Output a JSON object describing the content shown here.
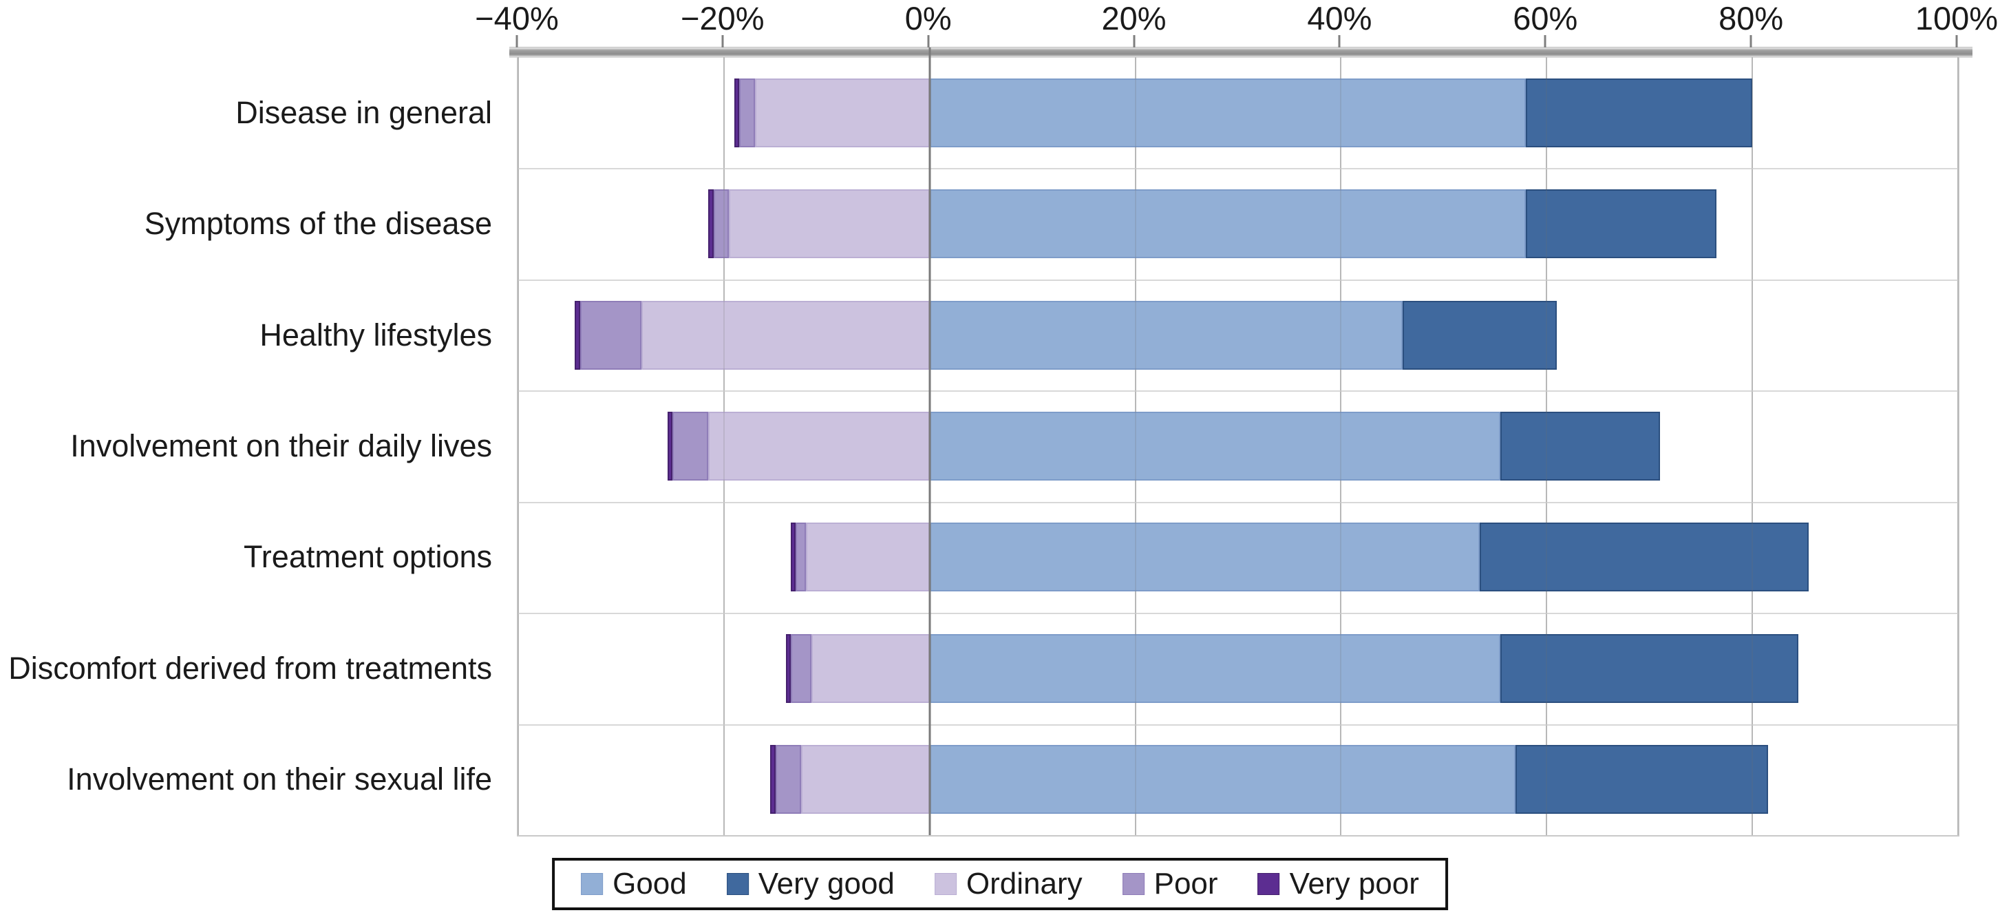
{
  "chart_data": {
    "type": "bar",
    "orientation": "horizontal",
    "diverging": true,
    "title": "",
    "categories": [
      "Disease in general",
      "Symptoms of the disease",
      "Healthy lifestyles",
      "Involvement on their daily lives",
      "Treatment options",
      "Discomfort derived from treatments",
      "Involvement on their sexual life"
    ],
    "series": [
      {
        "name": "Ordinary",
        "side": "negative",
        "color": "#CCC2DF",
        "border": "#BBAFD4",
        "values": [
          17,
          19.5,
          28,
          21.5,
          12,
          11.5,
          12.5
        ]
      },
      {
        "name": "Poor",
        "side": "negative",
        "color": "#A495C7",
        "border": "#8F7DB8",
        "values": [
          1.5,
          1.5,
          6,
          3.5,
          1,
          2,
          2.5
        ]
      },
      {
        "name": "Very poor",
        "side": "negative",
        "color": "#5C2D91",
        "border": "#45216E",
        "values": [
          0.5,
          0.5,
          0.5,
          0.5,
          0.5,
          0.5,
          0.5
        ]
      },
      {
        "name": "Good",
        "side": "positive",
        "color": "#92AFD6",
        "border": "#7E9CC9",
        "values": [
          58,
          58,
          46,
          55.5,
          53.5,
          55.5,
          57
        ]
      },
      {
        "name": "Very good",
        "side": "positive",
        "color": "#40699E",
        "border": "#2B4F7F",
        "values": [
          22,
          18.5,
          15,
          15.5,
          32,
          29,
          24.5
        ]
      }
    ],
    "x_axis": {
      "min": -40,
      "max": 100,
      "step": 20,
      "unit": "%",
      "tick_values": [
        -40,
        -20,
        0,
        20,
        40,
        60,
        80,
        100
      ],
      "tick_labels": [
        "−40%",
        "−20%",
        "0%",
        "20%",
        "40%",
        "60%",
        "80%",
        "100%"
      ]
    },
    "legend": {
      "position": "bottom",
      "entries": [
        "Good",
        "Very good",
        "Ordinary",
        "Poor",
        "Very poor"
      ]
    },
    "grid": true
  }
}
